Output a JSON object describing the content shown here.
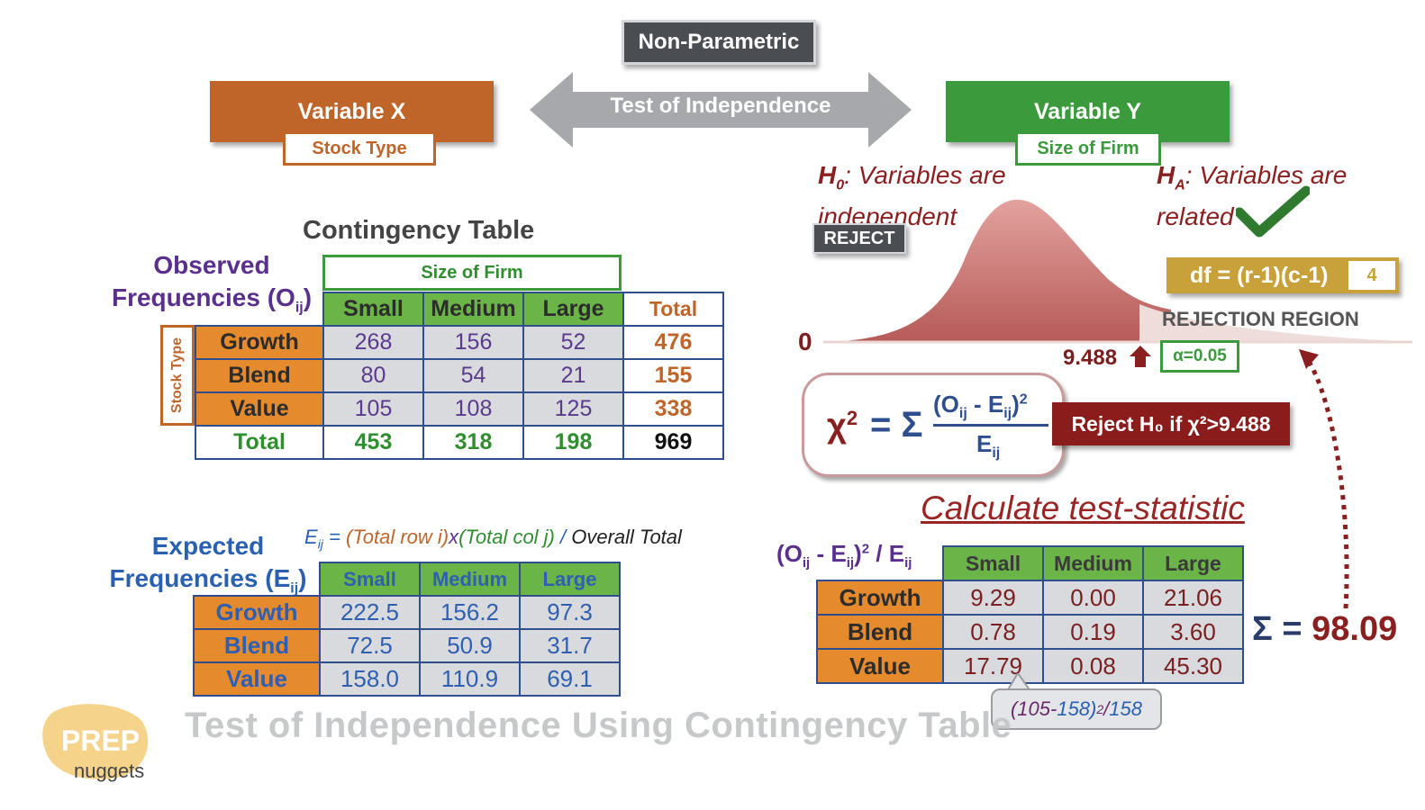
{
  "header": {
    "category": "Non-Parametric",
    "test_label": "Test of Independence",
    "var_x": {
      "title": "Variable X",
      "subtitle": "Stock Type"
    },
    "var_y": {
      "title": "Variable Y",
      "subtitle": "Size of Firm"
    }
  },
  "hypotheses": {
    "h0_symbol": "H",
    "h0_sub": "0",
    "h0_text_1": ": Variables are",
    "h0_text_2": "independent",
    "ha_symbol": "H",
    "ha_sub": "A",
    "ha_text_1": ": Variables are",
    "ha_text_2": "related",
    "reject_tag": "REJECT"
  },
  "distribution": {
    "zero": "0",
    "critical_value": "9.488",
    "alpha": "α=0.05",
    "rejection_region": "REJECTION REGION",
    "df_label": "df = (r-1)(c-1)",
    "df_value": "4"
  },
  "formula": {
    "lhs": "χ",
    "lhs_sup": "2",
    "eq_sigma": "= Σ",
    "numerator": "(O",
    "num_sub1": "ij",
    "num_mid": " - E",
    "num_sub2": "ij",
    "num_end": ")",
    "num_sup": "2",
    "denominator": "E",
    "den_sub": "ij",
    "reject_rule": "Reject H₀ if χ²>9.488"
  },
  "observed": {
    "section_title": "Contingency Table",
    "title_line1": "Observed",
    "title_line2": "Frequencies (O",
    "title_sub": "ij",
    "title_end": ")",
    "column_group": "Size of Firm",
    "row_group": "Stock Type",
    "columns": [
      "Small",
      "Medium",
      "Large",
      "Total"
    ],
    "rows": [
      {
        "label": "Growth",
        "values": [
          "268",
          "156",
          "52"
        ],
        "total": "476"
      },
      {
        "label": "Blend",
        "values": [
          "80",
          "54",
          "21"
        ],
        "total": "155"
      },
      {
        "label": "Value",
        "values": [
          "105",
          "108",
          "125"
        ],
        "total": "338"
      }
    ],
    "total_row": {
      "label": "Total",
      "values": [
        "453",
        "318",
        "198"
      ],
      "grand_total": "969"
    }
  },
  "expected": {
    "title_line1": "Expected",
    "title_line2": "Frequencies (E",
    "title_sub": "ij",
    "title_end": ")",
    "formula_e": "E",
    "formula_e_sub": "ij",
    "formula_eq": " = ",
    "formula_row": "(Total row i)",
    "formula_x": "x",
    "formula_col": "(Total col j)",
    "formula_div": " / ",
    "formula_overall": "Overall Total",
    "columns": [
      "Small",
      "Medium",
      "Large"
    ],
    "rows": [
      {
        "label": "Growth",
        "values": [
          "222.5",
          "156.2",
          "97.3"
        ]
      },
      {
        "label": "Blend",
        "values": [
          "72.5",
          "50.9",
          "31.7"
        ]
      },
      {
        "label": "Value",
        "values": [
          "158.0",
          "110.9",
          "69.1"
        ]
      }
    ]
  },
  "calculation": {
    "title": "Calculate test-statistic",
    "header_o": "(O",
    "header_o_sub": "ij",
    "header_mid": " - E",
    "header_mid_sub": "ij",
    "header_end": ")",
    "header_sup": "2",
    "header_div": " / E",
    "header_div_sub": "ij",
    "columns": [
      "Small",
      "Medium",
      "Large"
    ],
    "rows": [
      {
        "label": "Growth",
        "values": [
          "9.29",
          "0.00",
          "21.06"
        ]
      },
      {
        "label": "Blend",
        "values": [
          "0.78",
          "0.19",
          "3.60"
        ]
      },
      {
        "label": "Value",
        "values": [
          "17.79",
          "0.08",
          "45.30"
        ]
      }
    ],
    "sum_symbol": "Σ =",
    "sum_value": "98.09",
    "callout_a": "(105-",
    "callout_b": "158)",
    "callout_sup": "2",
    "callout_c": " / ",
    "callout_d": "158"
  },
  "footer": {
    "logo_top": "PREP",
    "logo_bottom": "nuggets",
    "title": "Test of Independence Using Contingency Table"
  },
  "colors": {
    "orange": "#c0652a",
    "green": "#3b9a3b",
    "navy": "#2e4e8e",
    "dark_red": "#8b1e1e",
    "gold": "#c9a13a"
  }
}
